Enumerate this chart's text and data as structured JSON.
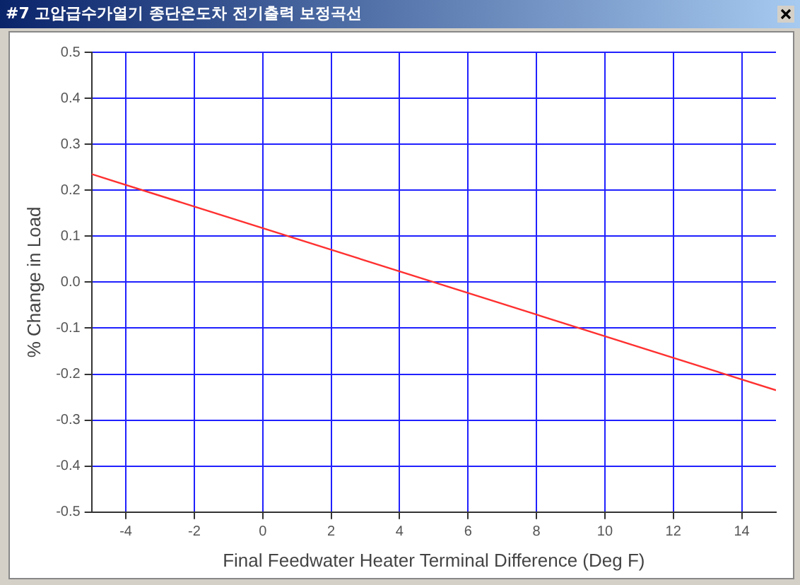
{
  "chart_data": {
    "type": "line",
    "title": "#7 고압급수가열기 종단온도차 전기출력 보정곡선",
    "xlabel": "Final Feedwater Heater Terminal Difference (Deg F)",
    "ylabel": "% Change in Load",
    "x": [
      -5,
      15
    ],
    "series": [
      {
        "color": "#ff3030",
        "values": [
          0.235,
          -0.235
        ]
      }
    ],
    "xlim": [
      -5,
      15
    ],
    "xticks": [
      -4,
      -2,
      0,
      2,
      4,
      6,
      8,
      10,
      12,
      14
    ],
    "ylim": [
      -0.5,
      0.5
    ],
    "yticks": [
      -0.5,
      -0.4,
      -0.3,
      -0.2,
      -0.1,
      {
        "value": 0,
        "label": "0.0"
      },
      0.1,
      0.2,
      0.3,
      0.4,
      0.5
    ],
    "grid": true,
    "marker": "none",
    "line_style": "solid"
  }
}
